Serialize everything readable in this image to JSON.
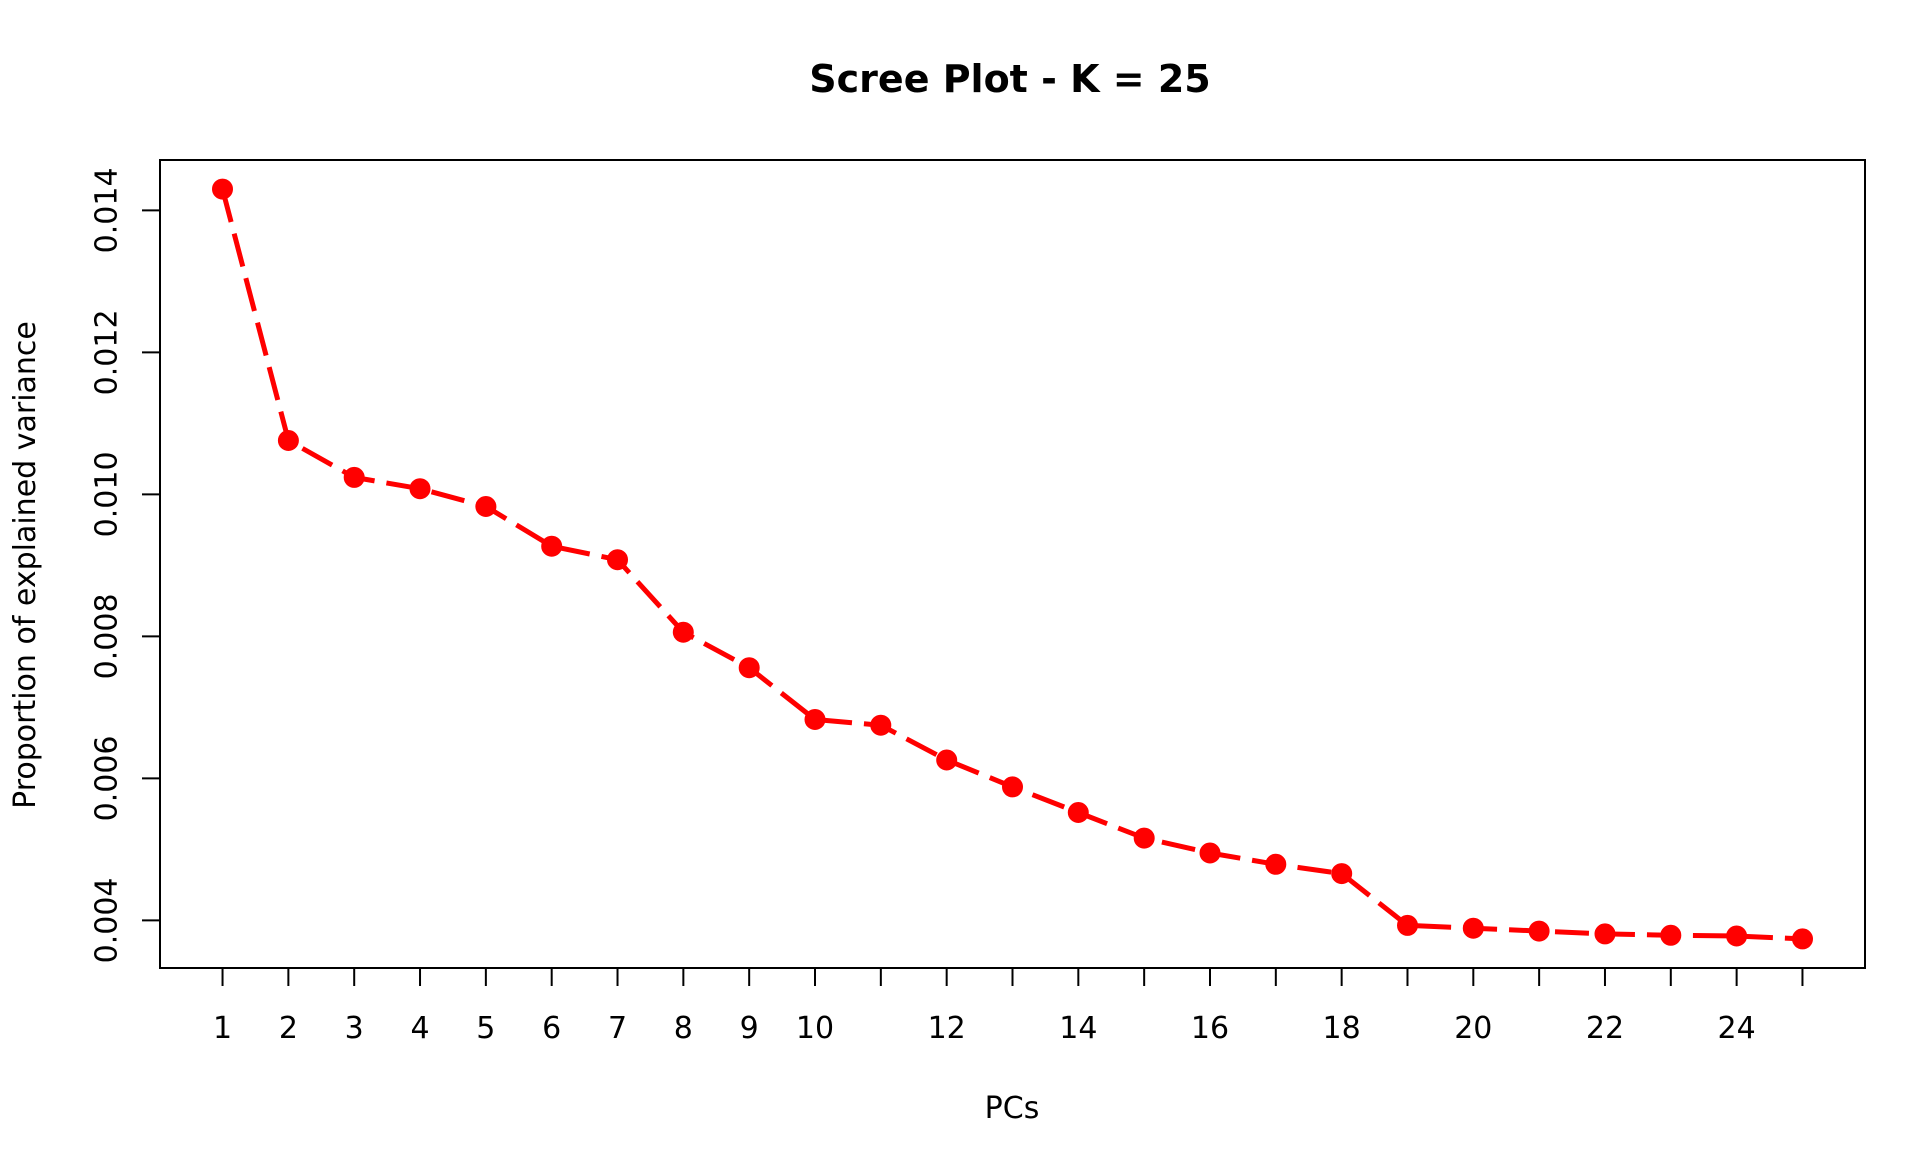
{
  "chart_data": {
    "type": "line",
    "title": "Scree Plot - K = 25",
    "xlabel": "PCs",
    "ylabel": "Proportion of explained variance",
    "x": [
      1,
      2,
      3,
      4,
      5,
      6,
      7,
      8,
      9,
      10,
      11,
      12,
      13,
      14,
      15,
      16,
      17,
      18,
      19,
      20,
      21,
      22,
      23,
      24,
      25
    ],
    "y": [
      0.0143,
      0.01076,
      0.01024,
      0.01008,
      0.00983,
      0.00927,
      0.00908,
      0.00806,
      0.00756,
      0.00683,
      0.00675,
      0.00626,
      0.00588,
      0.00552,
      0.00516,
      0.00495,
      0.00479,
      0.00466,
      0.00393,
      0.00389,
      0.00385,
      0.00381,
      0.00379,
      0.00378,
      0.00374
    ],
    "xlim": [
      0.05,
      25.95
    ],
    "ylim": [
      0.00333,
      0.01471
    ],
    "x_ticks": [
      1,
      2,
      3,
      4,
      5,
      6,
      7,
      8,
      9,
      10,
      11,
      12,
      13,
      14,
      15,
      16,
      17,
      18,
      19,
      20,
      21,
      22,
      23,
      24,
      25
    ],
    "x_tick_labels": [
      "1",
      "2",
      "3",
      "4",
      "5",
      "6",
      "7",
      "8",
      "9",
      "10",
      "",
      "12",
      "",
      "14",
      "",
      "16",
      "",
      "18",
      "",
      "20",
      "",
      "22",
      "",
      "24",
      ""
    ],
    "y_ticks": [
      0.004,
      0.006,
      0.008,
      0.01,
      0.012,
      0.014
    ],
    "y_tick_labels": [
      "0.004",
      "0.006",
      "0.008",
      "0.010",
      "0.012",
      "0.014"
    ],
    "grid": false,
    "legend": "none",
    "line_style": "dashed",
    "marker": "filled-circle",
    "colors": {
      "series": "#ff0000",
      "axis": "#000000",
      "background": "#ffffff"
    }
  }
}
